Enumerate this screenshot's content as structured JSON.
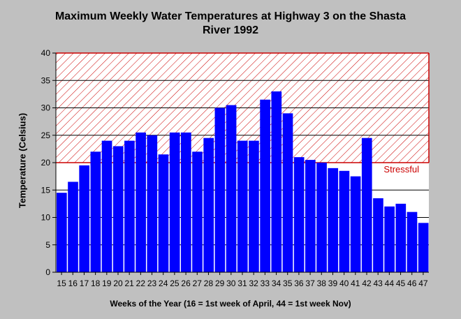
{
  "chart_data": {
    "type": "bar",
    "title_lines": [
      "Maximum Weekly Water Temperatures at Highway 3 on the Shasta",
      "River 1992"
    ],
    "xlabel": "Weeks of the Year (16 = 1st week of April, 44 = 1st week Nov)",
    "ylabel": "Temperature (Celsius)",
    "ylim": [
      0,
      40
    ],
    "yticks": [
      0,
      5,
      10,
      15,
      20,
      25,
      30,
      35,
      40
    ],
    "grid": true,
    "categories": [
      "15",
      "16",
      "17",
      "18",
      "19",
      "20",
      "21",
      "22",
      "23",
      "24",
      "25",
      "26",
      "27",
      "28",
      "29",
      "30",
      "31",
      "32",
      "33",
      "34",
      "35",
      "36",
      "37",
      "38",
      "39",
      "40",
      "41",
      "42",
      "43",
      "44",
      "45",
      "46",
      "47"
    ],
    "series": [
      {
        "values": [
          14.5,
          16.5,
          19.5,
          22,
          24,
          23,
          24,
          25.5,
          25,
          21.5,
          25.5,
          25.5,
          22,
          24.5,
          30,
          30.5,
          24,
          24,
          31.5,
          33,
          29,
          21,
          20.5,
          20,
          19,
          18.5,
          17.5,
          24.5,
          13.5,
          12,
          12.5,
          11,
          9
        ]
      }
    ],
    "band": {
      "label": "Stressful",
      "from": 20,
      "to": 40
    },
    "colors": {
      "bar": "#0000ff",
      "band": "#cc0000",
      "background": "#c0c0c0",
      "plot": "#ffffff"
    }
  }
}
